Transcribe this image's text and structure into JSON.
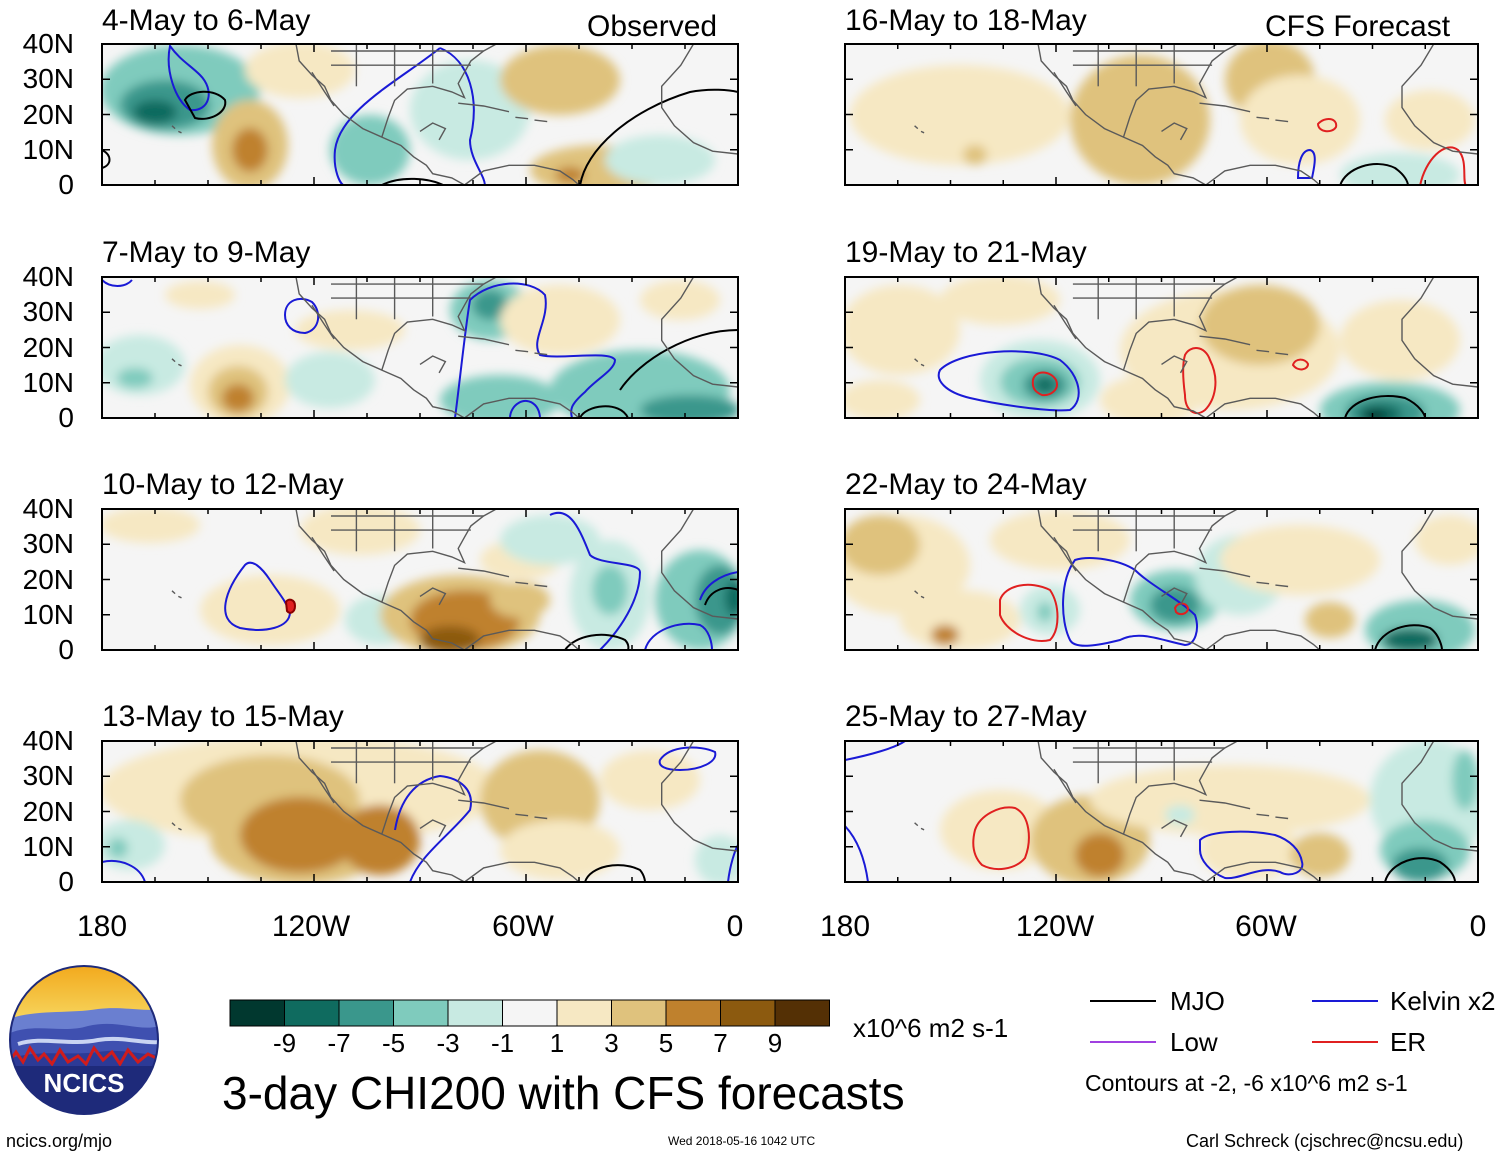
{
  "panels": [
    {
      "title": "4-May to 6-May",
      "corner": "Observed"
    },
    {
      "title": "16-May to 18-May",
      "corner": "CFS Forecast"
    },
    {
      "title": "7-May to 9-May",
      "corner": ""
    },
    {
      "title": "19-May to 21-May",
      "corner": ""
    },
    {
      "title": "10-May to 12-May",
      "corner": ""
    },
    {
      "title": "22-May to 24-May",
      "corner": ""
    },
    {
      "title": "13-May to 15-May",
      "corner": ""
    },
    {
      "title": "25-May to 27-May",
      "corner": ""
    }
  ],
  "lat_labels": [
    "40N",
    "30N",
    "20N",
    "10N",
    "0"
  ],
  "lon_labels": [
    "180",
    "120W",
    "60W",
    "0"
  ],
  "colorbar": {
    "colors": [
      "#01382f",
      "#0f6b5f",
      "#3a978c",
      "#7fcbbd",
      "#c8eae2",
      "#f5f5f5",
      "#f6e8c3",
      "#dfc27d",
      "#bf812d",
      "#8c5a0f",
      "#543005"
    ],
    "labels": [
      "-9",
      "-7",
      "-5",
      "-3",
      "-1",
      "1",
      "3",
      "5",
      "7",
      "9"
    ],
    "units": "x10^6 m2 s-1"
  },
  "title": "3-day CHI200 with CFS forecasts",
  "legend": {
    "items": [
      {
        "label": "MJO",
        "color": "#000000"
      },
      {
        "label": "Kelvin x2",
        "color": "#1a1ad6"
      },
      {
        "label": "Low",
        "color": "#a040e0"
      },
      {
        "label": "ER",
        "color": "#e02020"
      }
    ],
    "contours_note": "Contours at -2, -6 x10^6 m2 s-1"
  },
  "logo_text": "NCICS",
  "footer": {
    "left": "ncics.org/mjo",
    "center": "Wed 2018-05-16 1042 UTC",
    "right": "Carl Schreck (cjschrec@ncsu.edu)"
  },
  "chart_data": {
    "type": "map",
    "variable": "3-day CHI200 (200-hPa velocity potential) anomalies",
    "units": "x10^6 m2 s-1",
    "domain": {
      "lon": [
        -180,
        0
      ],
      "lat": [
        0,
        40
      ]
    },
    "contour_levels": [
      -2,
      -6
    ],
    "color_levels": [
      -9,
      -7,
      -5,
      -3,
      -1,
      1,
      3,
      5,
      7,
      9
    ],
    "observed_panels": [
      "4-May to 6-May",
      "7-May to 9-May",
      "10-May to 12-May",
      "13-May to 15-May"
    ],
    "forecast_panels": [
      "16-May to 18-May",
      "19-May to 21-May",
      "22-May to 24-May",
      "25-May to 27-May"
    ]
  }
}
